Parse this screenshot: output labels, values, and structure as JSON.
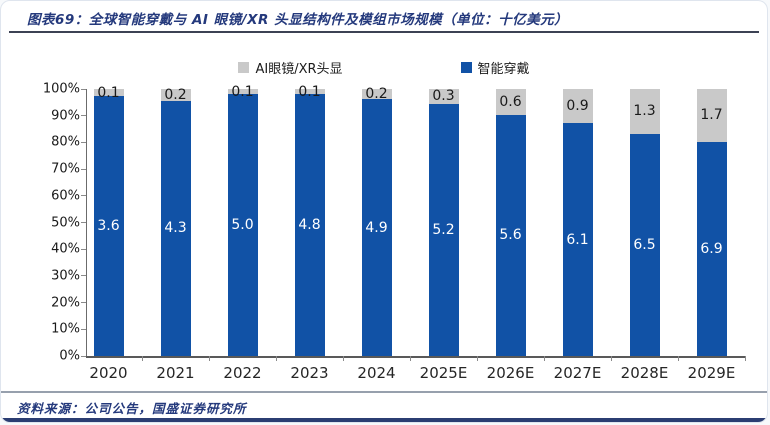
{
  "header": {
    "title": "图表69：全球智能穿戴与 AI 眼镜/XR 头显结构件及模组市场规模（单位：十亿美元）"
  },
  "footer": {
    "source": "资料来源：公司公告，国盛证券研究所"
  },
  "colors": {
    "wearable_blue": "#1152a6",
    "xr_gray": "#c9c9c9",
    "title_navy": "#24397c",
    "rule_navy": "#2b3d72"
  },
  "chart_data": {
    "type": "bar",
    "stacked": true,
    "normalized": "percent-100",
    "title": "全球智能穿戴与 AI 眼镜/XR 头显结构件及模组市场规模（单位：十亿美元）",
    "categories": [
      "2020",
      "2021",
      "2022",
      "2023",
      "2024",
      "2025E",
      "2026E",
      "2027E",
      "2028E",
      "2029E"
    ],
    "series": [
      {
        "name": "智能穿戴",
        "color": "#1152a6",
        "values": [
          3.6,
          4.3,
          5.0,
          4.8,
          4.9,
          5.2,
          5.6,
          6.1,
          6.5,
          6.9
        ]
      },
      {
        "name": "AI眼镜/XR头显",
        "color": "#c9c9c9",
        "values": [
          0.1,
          0.2,
          0.1,
          0.1,
          0.2,
          0.3,
          0.6,
          0.9,
          1.3,
          1.7
        ]
      }
    ],
    "y_ticks": [
      "0%",
      "10%",
      "20%",
      "30%",
      "40%",
      "50%",
      "60%",
      "70%",
      "80%",
      "90%",
      "100%"
    ],
    "ylim": [
      0,
      100
    ],
    "ylabel": "",
    "xlabel": "",
    "grid": false,
    "legend_position": "top",
    "legend_order": [
      "AI眼镜/XR头显",
      "智能穿戴"
    ]
  }
}
